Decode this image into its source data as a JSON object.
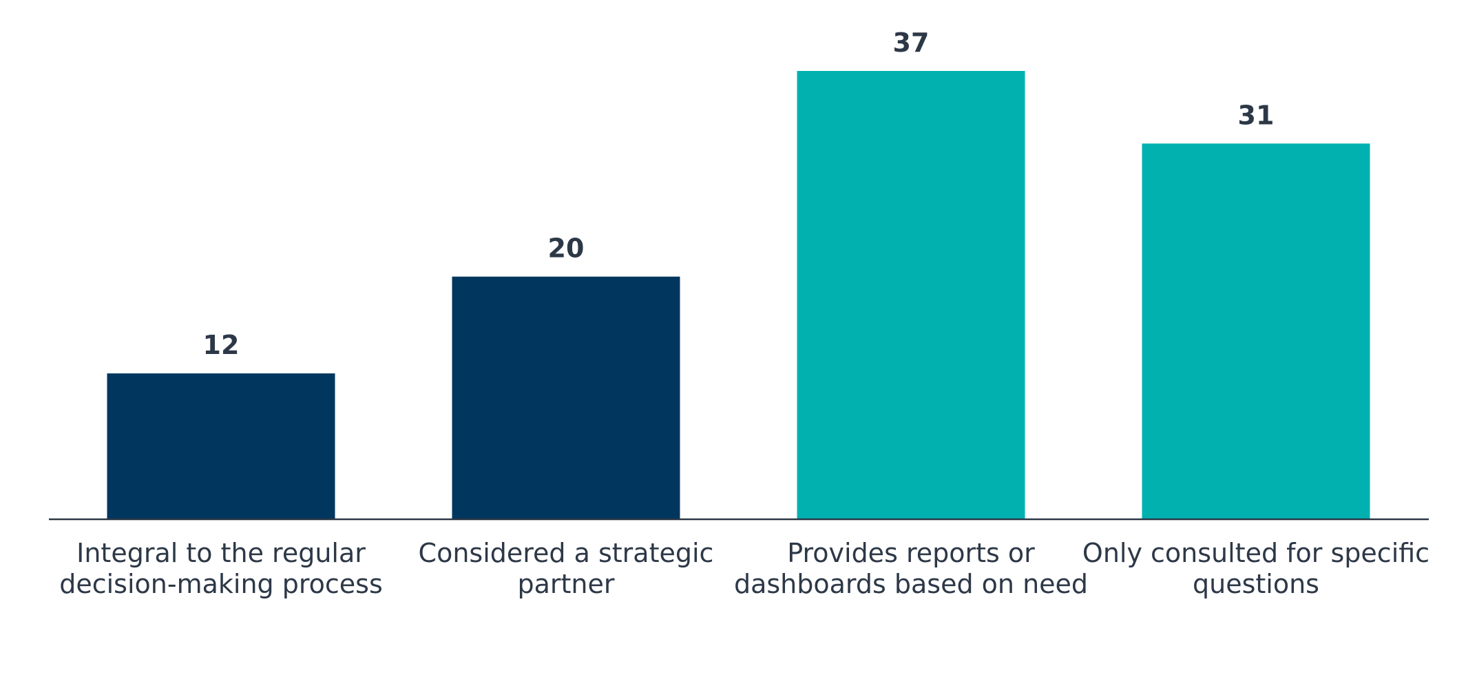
{
  "chart_data": {
    "type": "bar",
    "categories": [
      [
        "Integral to the regular",
        "decision-making process"
      ],
      [
        "Considered a strategic",
        "partner"
      ],
      [
        "Provides reports or",
        "dashboards based on need"
      ],
      [
        "Only consulted for specific",
        "questions"
      ]
    ],
    "values": [
      12,
      20,
      37,
      31
    ],
    "bar_colors": [
      "#01365e",
      "#01365e",
      "#00b1b0",
      "#00b1b0"
    ],
    "axis_color": "#2d3847",
    "text_color": "#2d3847",
    "ylim": [
      0,
      37
    ],
    "grid": false,
    "legend": "none"
  }
}
